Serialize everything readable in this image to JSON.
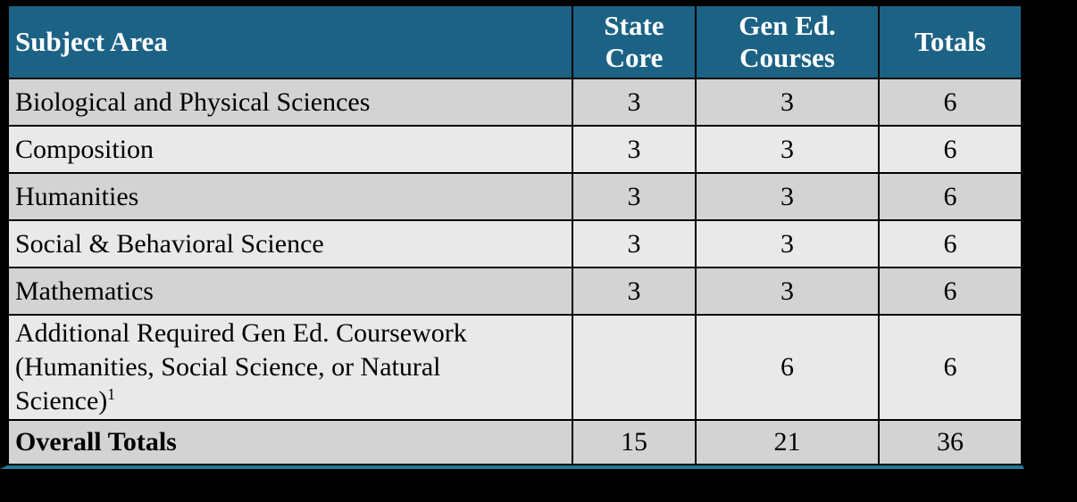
{
  "colors": {
    "page_background": "#000000",
    "header_background": "#1c6285",
    "header_text": "#ffffff",
    "row_dark": "#d3d3d3",
    "row_light": "#e9e9e9",
    "cell_border": "#000000",
    "bottom_accent": "#1f7a93",
    "body_text": "#000000"
  },
  "table": {
    "header": {
      "subject_area": "Subject Area",
      "state_core": "State Core",
      "gen_ed_courses": "Gen Ed. Courses",
      "totals": "Totals"
    },
    "rows": [
      {
        "subject": "Biological and Physical Sciences",
        "state_core": "3",
        "gen_ed": "3",
        "total": "6"
      },
      {
        "subject": "Composition",
        "state_core": "3",
        "gen_ed": "3",
        "total": "6"
      },
      {
        "subject": "Humanities",
        "state_core": "3",
        "gen_ed": "3",
        "total": "6"
      },
      {
        "subject": "Social & Behavioral Science",
        "state_core": "3",
        "gen_ed": "3",
        "total": "6"
      },
      {
        "subject": "Mathematics",
        "state_core": "3",
        "gen_ed": "3",
        "total": "6"
      },
      {
        "subject": "Additional Required Gen Ed. Coursework (Humanities, Social Science, or Natural Science)",
        "superscript": "1",
        "state_core": "",
        "gen_ed": "6",
        "total": "6"
      }
    ],
    "footer": {
      "label": "Overall Totals",
      "state_core": "15",
      "gen_ed": "21",
      "total": "36"
    }
  },
  "chart_data": {
    "type": "table",
    "title": "",
    "columns": [
      "Subject Area",
      "State Core",
      "Gen Ed. Courses",
      "Totals"
    ],
    "rows": [
      [
        "Biological and Physical Sciences",
        3,
        3,
        6
      ],
      [
        "Composition",
        3,
        3,
        6
      ],
      [
        "Humanities",
        3,
        3,
        6
      ],
      [
        "Social & Behavioral Science",
        3,
        3,
        6
      ],
      [
        "Mathematics",
        3,
        3,
        6
      ],
      [
        "Additional Required Gen Ed. Coursework (Humanities, Social Science, or Natural Science)¹",
        null,
        6,
        6
      ],
      [
        "Overall Totals",
        15,
        21,
        36
      ]
    ],
    "footnote_marker": "1",
    "layout": "header row teal with white bold text, alternating gray body rows, bold footer label, black grid borders, teal bottom accent line on black background"
  }
}
